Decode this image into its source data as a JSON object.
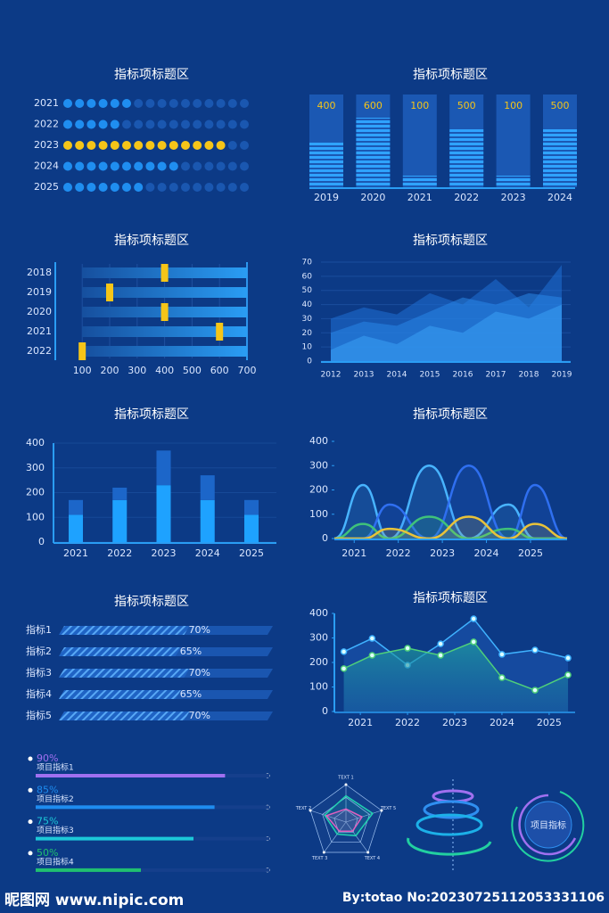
{
  "chart_data": [
    {
      "type": "dots",
      "title": "指标项标题区",
      "categories": [
        "2021",
        "2022",
        "2023",
        "2024",
        "2025"
      ],
      "values": [
        6,
        5,
        14,
        10,
        7
      ],
      "xlim": [
        0,
        16
      ],
      "colors": [
        "#1f8ef0",
        "#1f8ef0",
        "#f5c518",
        "#1f8ef0",
        "#1f8ef0"
      ],
      "track_color": "#1a57b0"
    },
    {
      "type": "striped_bar",
      "title": "指标项标题区",
      "categories": [
        "2019",
        "2020",
        "2021",
        "2022",
        "2023",
        "2024"
      ],
      "values": [
        400,
        600,
        100,
        500,
        100,
        500
      ],
      "ylim": [
        0,
        800
      ],
      "color": "#2fa3ff",
      "label_color": "#f5c518"
    },
    {
      "type": "gantt",
      "title": "指标项标题区",
      "categories": [
        "2018",
        "2019",
        "2020",
        "2021",
        "2022"
      ],
      "values": [
        400,
        200,
        400,
        600,
        100
      ],
      "xlim": [
        0,
        700
      ],
      "xticks": [
        100,
        200,
        300,
        400,
        500,
        600,
        700
      ],
      "color": "#f5c518"
    },
    {
      "type": "area",
      "title": "指标项标题区",
      "categories": [
        "2012",
        "2013",
        "2014",
        "2015",
        "2016",
        "2017",
        "2018",
        "2019"
      ],
      "ylim": [
        0,
        70
      ],
      "yticks": [
        0,
        10,
        20,
        30,
        40,
        50,
        60,
        70
      ],
      "series": [
        {
          "color": "#1f6fd6",
          "values": [
            30,
            38,
            33,
            48,
            40,
            58,
            38,
            68
          ]
        },
        {
          "color": "#2a86e8",
          "values": [
            20,
            28,
            25,
            35,
            45,
            40,
            48,
            45
          ]
        },
        {
          "color": "#3aa0f5",
          "values": [
            8,
            18,
            12,
            25,
            20,
            35,
            30,
            40
          ]
        }
      ]
    },
    {
      "type": "stacked_bar",
      "title": "指标项标题区",
      "categories": [
        "2021",
        "2022",
        "2023",
        "2024",
        "2025"
      ],
      "ylim": [
        0,
        400
      ],
      "yticks": [
        0,
        100,
        200,
        300,
        400
      ],
      "series": [
        {
          "color": "#1ea2ff",
          "values": [
            110,
            170,
            230,
            170,
            110
          ]
        },
        {
          "color": "#1c66c9",
          "values": [
            60,
            50,
            140,
            100,
            60
          ]
        }
      ]
    },
    {
      "type": "curve",
      "title": "指标项标题区",
      "x": [
        2020.55,
        2021.2,
        2021.8,
        2022.7,
        2023.6,
        2024.5,
        2025.1,
        2025.83
      ],
      "xlim": [
        2020.55,
        2025.83
      ],
      "xticks": [
        2021,
        2022,
        2023,
        2024,
        2025
      ],
      "ylim": [
        0,
        400
      ],
      "yticks": [
        0,
        100,
        200,
        300,
        400
      ],
      "series": [
        {
          "color": "#48b4ff",
          "values": [
            0,
            220,
            0,
            300,
            0,
            140,
            0,
            0
          ]
        },
        {
          "color": "#2f6ff0",
          "values": [
            0,
            0,
            140,
            0,
            300,
            0,
            220,
            0
          ]
        },
        {
          "color": "#3fc27a",
          "values": [
            0,
            60,
            0,
            90,
            0,
            40,
            0,
            0
          ]
        },
        {
          "color": "#e8c23a",
          "values": [
            0,
            0,
            40,
            0,
            90,
            0,
            60,
            0
          ]
        }
      ]
    },
    {
      "type": "progress",
      "title": "指标项标题区",
      "categories": [
        "指标1",
        "指标2",
        "指标3",
        "指标4",
        "指标5"
      ],
      "values": [
        70,
        65,
        70,
        65,
        70
      ],
      "value_labels": [
        "70%",
        "65%",
        "70%",
        "65%",
        "70%"
      ],
      "xlim": [
        0,
        100
      ],
      "color": "#3d9df5"
    },
    {
      "type": "line",
      "title": "指标项标题区",
      "x": [
        2020.65,
        2021.25,
        2022,
        2022.7,
        2023.4,
        2024,
        2024.7,
        2025.4
      ],
      "xlim": [
        2020.45,
        2025.55
      ],
      "xticks": [
        2021,
        2022,
        2023,
        2024,
        2025
      ],
      "ylim": [
        0,
        400
      ],
      "yticks": [
        0,
        100,
        200,
        300,
        400
      ],
      "series": [
        {
          "color": "#3fb2ff",
          "values": [
            244,
            298,
            189,
            276,
            378,
            233,
            251,
            218
          ]
        },
        {
          "color": "#4fd07a",
          "values": [
            175,
            229,
            258,
            229,
            284,
            138,
            87,
            149
          ]
        }
      ]
    },
    {
      "type": "progress_list",
      "categories": [
        "项目指标1",
        "项目指标2",
        "项目指标3",
        "项目指标4"
      ],
      "values": [
        90,
        85,
        75,
        50
      ],
      "value_labels": [
        "90%",
        "85%",
        "75%",
        "50%"
      ],
      "xlim": [
        0,
        100
      ],
      "colors": [
        "#a070f0",
        "#1e8cf0",
        "#1cc8d8",
        "#20c070"
      ]
    },
    {
      "type": "radar",
      "categories": [
        "TEXT 1",
        "TEXT 2",
        "TEXT 3",
        "TEXT 4",
        "TEXT 5"
      ],
      "rlim": [
        0,
        100
      ],
      "series": [
        {
          "color": "#22d0b0",
          "values": [
            70,
            60,
            40,
            45,
            75
          ]
        },
        {
          "color": "#e060c0",
          "values": [
            35,
            55,
            30,
            30,
            45
          ]
        }
      ]
    }
  ],
  "decor": {
    "label": "项目指标"
  },
  "footer": {
    "left": "昵图网 www.nipic.com",
    "right": "By:totao No:20230725112053331106"
  }
}
